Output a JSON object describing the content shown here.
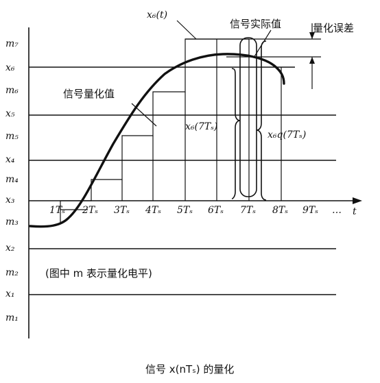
{
  "level_labels": {
    "m7": "m₇",
    "x6": "x₆",
    "m6": "m₆",
    "x5": "x₅",
    "m5": "m₅",
    "x4": "x₄",
    "m4": "m₄",
    "x3": "x₃",
    "m3": "m₃",
    "x2": "x₂",
    "m2": "m₂",
    "x1": "x₁",
    "m1": "m₁"
  },
  "time_ticks": [
    "1Tₛ",
    "2Tₛ",
    "3Tₛ",
    "4Tₛ",
    "5Tₛ",
    "6Tₛ",
    "7Tₛ",
    "8Tₛ",
    "9Tₛ",
    "…"
  ],
  "t_axis_label": "t",
  "curve_label": "x₆(t)",
  "annotations": {
    "actual_value": "信号实际值",
    "quantization_error": "量化误差",
    "quantized_value": "信号量化值",
    "x6_7ts": "x₆(7Tₛ)",
    "x6q_7ts": "x₆q(7Tₛ)",
    "note": "(图中 m 表示量化电平)"
  },
  "caption": "信号 x(nTₛ) 的量化"
}
